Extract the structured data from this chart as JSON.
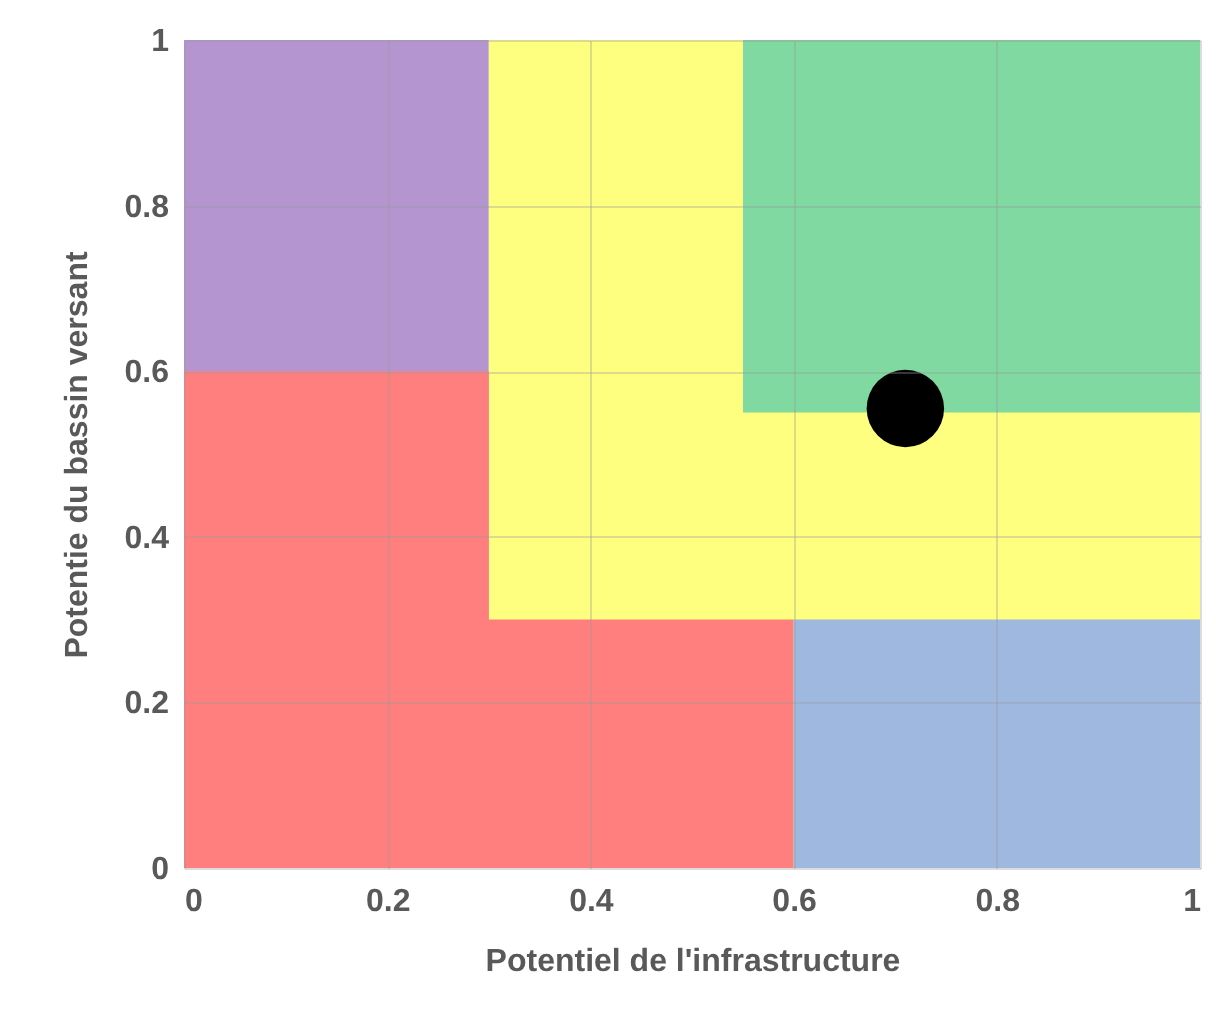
{
  "chart_data": {
    "type": "area",
    "xlabel": "Potentiel de l'infrastructure",
    "ylabel": "Potentie du bassin versant",
    "xlim": [
      0,
      1
    ],
    "ylim": [
      0,
      1
    ],
    "xticks": [
      0,
      0.2,
      0.4,
      0.6,
      0.8,
      1
    ],
    "yticks": [
      0,
      0.2,
      0.4,
      0.6,
      0.8,
      1
    ],
    "grid": true,
    "series": [
      {
        "type": "area",
        "color": "#7fd9a0",
        "x": [
          0.55,
          1
        ],
        "values": [
          1,
          1
        ]
      },
      {
        "type": "area",
        "color": "#b495d0",
        "x": [
          0,
          0.3
        ],
        "values": [
          1,
          1
        ]
      },
      {
        "type": "area",
        "color": "#ffff7f",
        "x": [
          0.3,
          0.55,
          0.55,
          1
        ],
        "values": [
          1,
          1,
          0.55,
          0.55
        ]
      },
      {
        "type": "area",
        "color": "#ff7f7f",
        "x": [
          0,
          0.3,
          0.3,
          0.6
        ],
        "values": [
          0.6,
          0.6,
          0.3,
          0.3
        ]
      },
      {
        "type": "area",
        "color": "#9fb8e0",
        "x": [
          0.6,
          1
        ],
        "values": [
          0.3,
          0.3
        ]
      },
      {
        "type": "scatter",
        "color": "#000000",
        "marker": "circle",
        "x": [
          0.71
        ],
        "values": [
          0.555
        ]
      }
    ]
  }
}
